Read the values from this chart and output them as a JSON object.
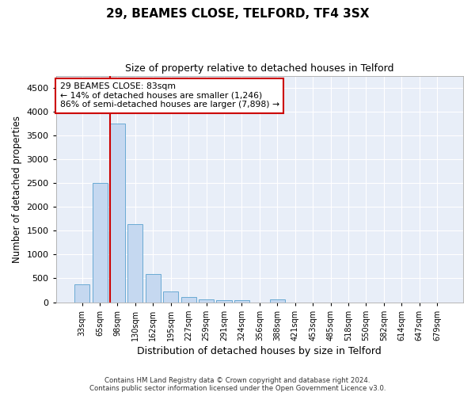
{
  "title": "29, BEAMES CLOSE, TELFORD, TF4 3SX",
  "subtitle": "Size of property relative to detached houses in Telford",
  "xlabel": "Distribution of detached houses by size in Telford",
  "ylabel": "Number of detached properties",
  "bar_color": "#c5d8f0",
  "bar_edge_color": "#6aaad4",
  "background_color": "#e8eef8",
  "grid_color": "#ffffff",
  "annotation_line_color": "#cc0000",
  "categories": [
    "33sqm",
    "65sqm",
    "98sqm",
    "130sqm",
    "162sqm",
    "195sqm",
    "227sqm",
    "259sqm",
    "291sqm",
    "324sqm",
    "356sqm",
    "388sqm",
    "421sqm",
    "453sqm",
    "485sqm",
    "518sqm",
    "550sqm",
    "582sqm",
    "614sqm",
    "647sqm",
    "679sqm"
  ],
  "values": [
    370,
    2500,
    3750,
    1640,
    590,
    230,
    110,
    65,
    50,
    35,
    0,
    60,
    0,
    0,
    0,
    0,
    0,
    0,
    0,
    0,
    0
  ],
  "ylim": [
    0,
    4750
  ],
  "yticks": [
    0,
    500,
    1000,
    1500,
    2000,
    2500,
    3000,
    3500,
    4000,
    4500
  ],
  "annotation_text_line1": "29 BEAMES CLOSE: 83sqm",
  "annotation_text_line2": "← 14% of detached houses are smaller (1,246)",
  "annotation_text_line3": "86% of semi-detached houses are larger (7,898) →",
  "footer_line1": "Contains HM Land Registry data © Crown copyright and database right 2024.",
  "footer_line2": "Contains public sector information licensed under the Open Government Licence v3.0."
}
